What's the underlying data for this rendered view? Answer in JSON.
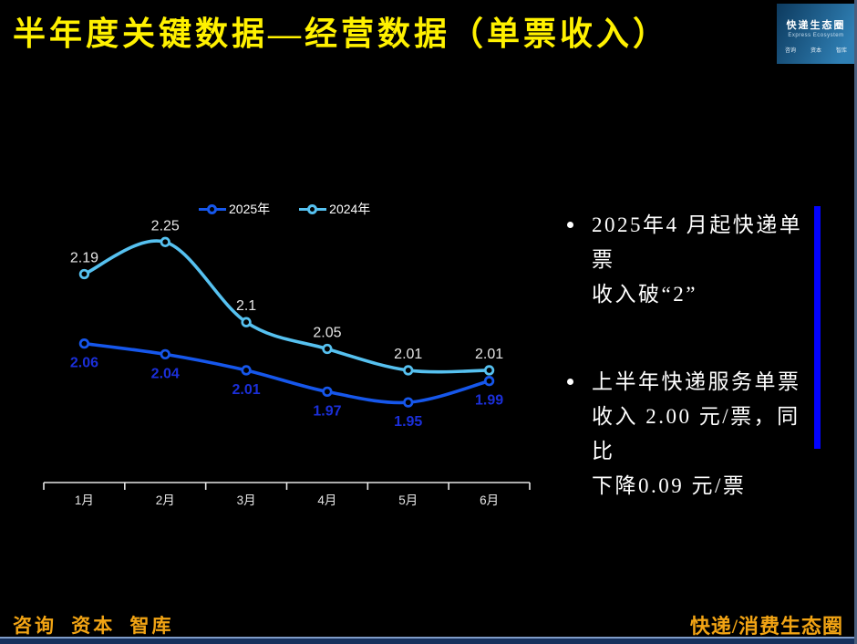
{
  "slide": {
    "title": "半年度关键数据—经营数据（单票收入）",
    "footer_left": "咨询 资本 智库",
    "footer_right": "快递/消费生态圈"
  },
  "logo": {
    "name": "快递生态圈",
    "subtitle": "Express Ecosystem",
    "tagline_items": [
      "咨询",
      "资本",
      "智库"
    ]
  },
  "bullets": [
    [
      "2025年4 月起快递单票",
      "收入破“2”"
    ],
    [
      "上半年快递服务单票",
      "收入 2.00 元/票，同比",
      "下降0.09 元/票"
    ]
  ],
  "colors": {
    "title": "#FFF100",
    "footer": "#F2A414",
    "accent_bar": "#0303FE",
    "axis": "#E6E6E6",
    "bullet_text": "#FFFFFF"
  },
  "chart_data": {
    "type": "line",
    "categories": [
      "1月",
      "2月",
      "3月",
      "4月",
      "5月",
      "6月"
    ],
    "series": [
      {
        "name": "2025年",
        "values": [
          2.06,
          2.04,
          2.01,
          1.97,
          1.95,
          1.99
        ],
        "color": "#1657EC",
        "label_color": "#1B2FD9",
        "label_position": "below"
      },
      {
        "name": "2024年",
        "values": [
          2.19,
          2.25,
          2.1,
          2.05,
          2.01,
          2.01
        ],
        "color": "#56C1F0",
        "label_color": "#E6E6E6",
        "label_position": "above"
      }
    ],
    "ylim": [
      1.8,
      2.37
    ],
    "grid": false,
    "legend_position": "top",
    "data_labels": true,
    "smooth": true
  }
}
